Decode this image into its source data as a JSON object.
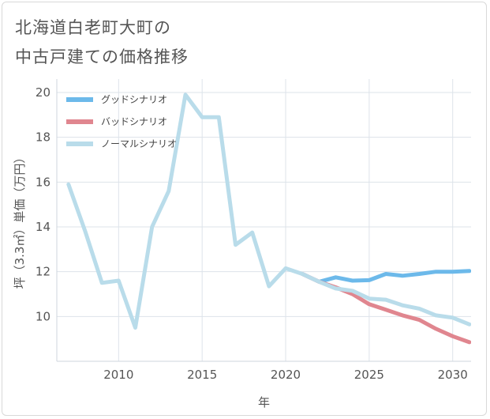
{
  "title_lines": [
    "北海道白老町大町の",
    "中古戸建ての価格推移"
  ],
  "chart_data": {
    "type": "line",
    "title": "北海道白老町大町の中古戸建ての価格推移",
    "xlabel": "年",
    "ylabel": "坪（3.3㎡）単価（万円）",
    "xlim": [
      2006.3,
      2031.1
    ],
    "ylim": [
      8.0,
      20.6
    ],
    "xticks": [
      2010,
      2015,
      2020,
      2025,
      2030
    ],
    "yticks": [
      10,
      12,
      14,
      16,
      18,
      20
    ],
    "grid": true,
    "legend_position": "top-left",
    "series": [
      {
        "name": "グッドシナリオ",
        "color": "#6cb9ea",
        "x": [
          2021,
          2022,
          2023,
          2024,
          2025,
          2026,
          2027,
          2028,
          2029,
          2030,
          2031
        ],
        "y": [
          11.9,
          11.55,
          11.75,
          11.6,
          11.62,
          11.9,
          11.82,
          11.9,
          12.0,
          12.0,
          12.03
        ]
      },
      {
        "name": "バッドシナリオ",
        "color": "#e0868f",
        "x": [
          2021,
          2022,
          2023,
          2024,
          2025,
          2026,
          2027,
          2028,
          2029,
          2030,
          2031
        ],
        "y": [
          11.9,
          11.55,
          11.3,
          11.0,
          10.55,
          10.3,
          10.05,
          9.85,
          9.45,
          9.12,
          8.85
        ]
      },
      {
        "name": "ノーマルシナリオ",
        "color": "#b9dcea",
        "x": [
          2007,
          2008,
          2009,
          2010,
          2011,
          2012,
          2013,
          2014,
          2015,
          2016,
          2017,
          2018,
          2019,
          2020,
          2021,
          2022,
          2023,
          2024,
          2025,
          2026,
          2027,
          2028,
          2029,
          2030,
          2031
        ],
        "y": [
          15.9,
          13.8,
          11.5,
          11.6,
          9.5,
          14.0,
          15.6,
          19.9,
          18.9,
          18.9,
          13.2,
          13.75,
          11.35,
          12.15,
          11.9,
          11.55,
          11.25,
          11.15,
          10.8,
          10.75,
          10.5,
          10.35,
          10.05,
          9.95,
          9.65
        ]
      }
    ]
  }
}
